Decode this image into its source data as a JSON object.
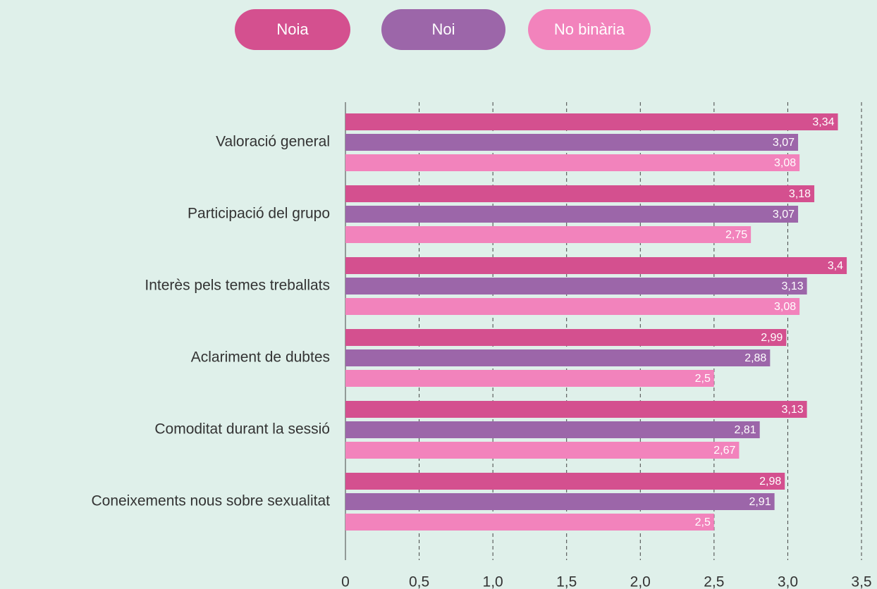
{
  "chart_data": {
    "type": "bar",
    "orientation": "horizontal",
    "categories": [
      "Valoració general",
      "Participació del grupo",
      "Interès pels temes treballats",
      "Aclariment de dubtes",
      "Comoditat durant la sessió",
      "Coneixements nous sobre sexualitat"
    ],
    "series": [
      {
        "name": "Noia",
        "color": "#d4508f",
        "values": [
          3.34,
          3.18,
          3.4,
          2.99,
          3.13,
          2.98
        ],
        "value_labels": [
          "3,34",
          "3,18",
          "3,4",
          "2,99",
          "3,13",
          "2,98"
        ]
      },
      {
        "name": "Noi",
        "color": "#9c66a9",
        "values": [
          3.07,
          3.07,
          3.13,
          2.88,
          2.81,
          2.91
        ],
        "value_labels": [
          "3,07",
          "3,07",
          "3,13",
          "2,88",
          "2,81",
          "2,91"
        ]
      },
      {
        "name": "No binària",
        "color": "#f283bc",
        "values": [
          3.08,
          2.75,
          3.08,
          2.5,
          2.67,
          2.5
        ],
        "value_labels": [
          "3,08",
          "2,75",
          "3,08",
          "2,5",
          "2,67",
          "2,5"
        ]
      }
    ],
    "xlim": [
      0,
      3.5
    ],
    "xticks": [
      0,
      {
        "value": 0.5,
        "label": "0,5"
      },
      {
        "value": 1,
        "label": "1,0"
      },
      {
        "value": 1.5,
        "label": "1,5"
      },
      {
        "value": 2,
        "label": "2,0"
      },
      {
        "value": 2.5,
        "label": "2,5"
      },
      {
        "value": 3,
        "label": "3,0"
      },
      {
        "value": 3.5,
        "label": "3,5"
      }
    ],
    "grid": true,
    "legend": "top"
  }
}
